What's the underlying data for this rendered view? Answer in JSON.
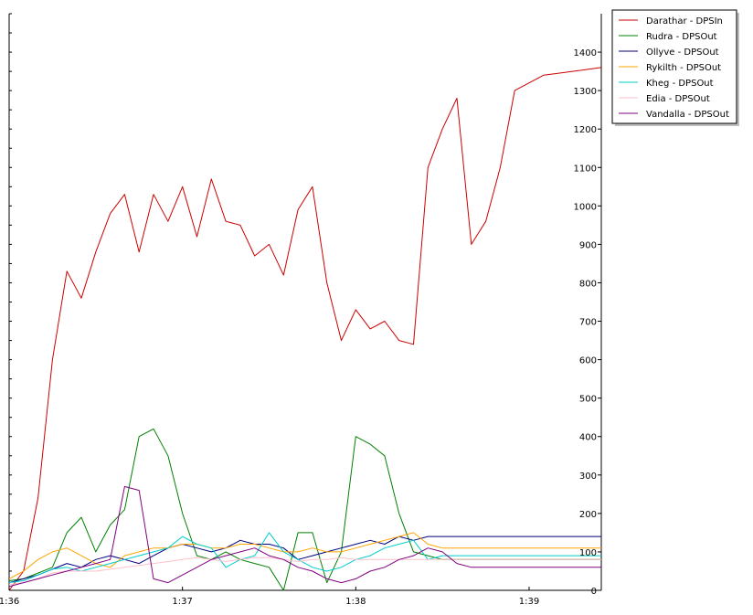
{
  "chart_data": {
    "type": "line",
    "title": "",
    "xlabel": "",
    "ylabel": "",
    "x_unit": "m:ss",
    "xlim": [
      "1:36",
      "1:39:25"
    ],
    "ylim": [
      0,
      1500
    ],
    "x_ticks": [
      "1:36",
      "1:37",
      "1:38",
      "1:39"
    ],
    "y_ticks": [
      0,
      100,
      200,
      300,
      400,
      500,
      600,
      700,
      800,
      900,
      1000,
      1100,
      1200,
      1300,
      1400
    ],
    "y_axis_side": "right",
    "grid": false,
    "legend_position": "top-right",
    "x": [
      "1:36",
      "1:36:05",
      "1:36:10",
      "1:36:15",
      "1:36:20",
      "1:36:25",
      "1:36:30",
      "1:36:35",
      "1:36:40",
      "1:36:45",
      "1:36:50",
      "1:36:55",
      "1:37",
      "1:37:05",
      "1:37:10",
      "1:37:15",
      "1:37:20",
      "1:37:25",
      "1:37:30",
      "1:37:35",
      "1:37:40",
      "1:37:45",
      "1:37:50",
      "1:37:55",
      "1:38",
      "1:38:05",
      "1:38:10",
      "1:38:15",
      "1:38:20",
      "1:38:25",
      "1:38:30",
      "1:38:35",
      "1:38:40",
      "1:38:45",
      "1:38:50",
      "1:38:55",
      "1:39",
      "1:39:05",
      "1:39:10",
      "1:39:15",
      "1:39:20",
      "1:39:25"
    ],
    "series": [
      {
        "name": "Darathar - DPSIn",
        "color": "#cc0000",
        "values": [
          0,
          50,
          240,
          600,
          830,
          760,
          880,
          980,
          1030,
          880,
          1030,
          960,
          1050,
          920,
          1070,
          960,
          950,
          870,
          900,
          820,
          990,
          1050,
          800,
          650,
          730,
          680,
          700,
          650,
          640,
          1100,
          1200,
          1280,
          900,
          960,
          1100,
          1300,
          1320,
          1340,
          1345,
          1350,
          1355,
          1360
        ]
      },
      {
        "name": "Rudra - DPSOut",
        "color": "#008000",
        "values": [
          25,
          30,
          45,
          60,
          150,
          190,
          100,
          170,
          210,
          400,
          420,
          350,
          200,
          90,
          80,
          100,
          80,
          70,
          60,
          0,
          150,
          150,
          20,
          100,
          400,
          380,
          350,
          200,
          100,
          90,
          80,
          80,
          80,
          80,
          80,
          80,
          80,
          80,
          80,
          80,
          80,
          80
        ]
      },
      {
        "name": "Ollyve - DPSOut",
        "color": "#000080",
        "values": [
          20,
          30,
          40,
          55,
          70,
          60,
          80,
          90,
          80,
          70,
          90,
          110,
          120,
          110,
          100,
          110,
          130,
          120,
          120,
          110,
          80,
          90,
          100,
          110,
          120,
          130,
          120,
          140,
          130,
          140,
          140,
          140,
          140,
          140,
          140,
          140,
          140,
          140,
          140,
          140,
          140,
          140
        ]
      },
      {
        "name": "Rykilth - DPSOut",
        "color": "#ffa500",
        "values": [
          30,
          50,
          80,
          100,
          110,
          90,
          70,
          60,
          90,
          100,
          110,
          110,
          120,
          120,
          110,
          110,
          120,
          120,
          110,
          100,
          100,
          110,
          100,
          100,
          110,
          120,
          130,
          140,
          150,
          120,
          110,
          110,
          110,
          110,
          110,
          110,
          110,
          110,
          110,
          110,
          110,
          110
        ]
      },
      {
        "name": "Kheg - DPSOut",
        "color": "#00cccc",
        "values": [
          20,
          25,
          40,
          55,
          60,
          50,
          60,
          70,
          80,
          90,
          100,
          110,
          140,
          120,
          110,
          60,
          80,
          90,
          150,
          100,
          80,
          60,
          50,
          60,
          80,
          90,
          110,
          120,
          130,
          80,
          90,
          90,
          90,
          90,
          90,
          90,
          90,
          90,
          90,
          90,
          90,
          90
        ]
      },
      {
        "name": "Edia - DPSOut",
        "color": "#ffc0cb",
        "values": [
          15,
          20,
          30,
          45,
          50,
          50,
          50,
          55,
          60,
          65,
          70,
          75,
          80,
          85,
          80,
          75,
          80,
          85,
          85,
          80,
          75,
          80,
          80,
          85,
          80,
          80,
          80,
          80,
          80,
          80,
          80,
          80,
          80,
          80,
          80,
          80,
          80,
          80,
          80,
          80,
          80,
          80
        ]
      },
      {
        "name": "Vandalla - DPSOut",
        "color": "#800080",
        "values": [
          10,
          20,
          30,
          40,
          50,
          60,
          70,
          80,
          270,
          260,
          30,
          20,
          40,
          60,
          80,
          90,
          100,
          110,
          90,
          80,
          60,
          50,
          30,
          20,
          30,
          50,
          60,
          80,
          90,
          110,
          100,
          70,
          60,
          60,
          60,
          60,
          60,
          60,
          60,
          60,
          60,
          60
        ]
      }
    ]
  }
}
